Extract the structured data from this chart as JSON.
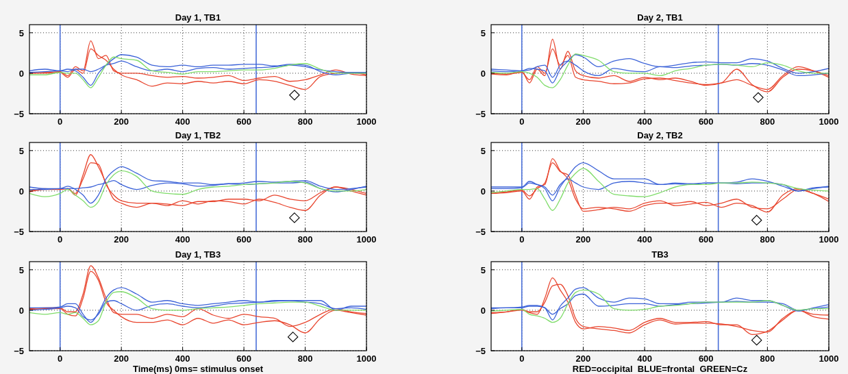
{
  "chart_data": [
    {
      "type": "line",
      "title": "Day 1, TB1",
      "x": [
        -100,
        -50,
        0,
        25,
        50,
        75,
        100,
        125,
        150,
        175,
        200,
        250,
        300,
        350,
        400,
        450,
        500,
        550,
        600,
        650,
        700,
        750,
        800,
        850,
        900,
        950,
        1000
      ],
      "xlim": [
        -100,
        1000
      ],
      "ylim": [
        -5,
        6
      ],
      "xticks": [
        0,
        200,
        400,
        600,
        800,
        1000
      ],
      "yticks": [
        -5,
        0,
        5
      ],
      "grid": true,
      "ref_lines": [
        {
          "axis": "x",
          "value": 0,
          "color": "#4a6fd8"
        },
        {
          "axis": "x",
          "value": 640,
          "color": "#4a6fd8"
        }
      ],
      "series": [
        {
          "color": "#e8452e",
          "values": [
            0,
            0.1,
            0.2,
            -0.3,
            0.8,
            0.3,
            4.0,
            1.8,
            2.2,
            0.3,
            0,
            0,
            -0.3,
            -0.5,
            -0.4,
            -0.6,
            -0.5,
            -0.3,
            -0.9,
            -0.6,
            -0.4,
            -1.0,
            -0.8,
            -0.2,
            0.4,
            -0.1,
            -0.3
          ]
        },
        {
          "color": "#e8452e",
          "values": [
            0,
            0,
            0.1,
            -0.5,
            0.5,
            0,
            3.0,
            2.2,
            1.6,
            0.5,
            -0.2,
            -0.8,
            -1.6,
            -1.2,
            -1.3,
            -1.0,
            -1.2,
            -1.0,
            -1.3,
            -0.8,
            -1.0,
            -1.5,
            -2.0,
            -0.4,
            0,
            0.1,
            -0.2
          ]
        },
        {
          "color": "#3b62d8",
          "values": [
            0.3,
            0.5,
            0.3,
            0.5,
            0.3,
            -0.5,
            -1.5,
            0,
            1.0,
            1.8,
            2.3,
            2.0,
            1.0,
            0.8,
            1.0,
            0.8,
            1.0,
            1.0,
            1.1,
            1.1,
            0.9,
            1.1,
            1.0,
            0.2,
            -0.2,
            0,
            0
          ]
        },
        {
          "color": "#3b62d8",
          "values": [
            0.1,
            0.2,
            0.3,
            0.2,
            0.5,
            0.5,
            0.2,
            0.5,
            1.0,
            1.2,
            1.5,
            0.8,
            0.3,
            0.5,
            0.2,
            0.6,
            0.7,
            0.5,
            0.6,
            0.7,
            0.8,
            1.0,
            0.8,
            0.4,
            0.2,
            0.1,
            0.1
          ]
        },
        {
          "color": "#7fdc6a",
          "values": [
            -0.2,
            -0.2,
            0.1,
            0,
            0,
            -0.8,
            -1.8,
            -0.5,
            1.0,
            2.0,
            1.8,
            1.6,
            0.3,
            0.1,
            -0.1,
            0.2,
            0.2,
            0.3,
            0.4,
            0.4,
            0.6,
            1.0,
            1.2,
            0.5,
            0,
            0,
            0
          ]
        },
        {
          "type": "scatter",
          "marker": "diamond",
          "color": "#000000",
          "x": [
            765
          ],
          "values": [
            -2.7
          ]
        }
      ]
    },
    {
      "type": "line",
      "title": "Day 1, TB2",
      "x": [
        -100,
        -50,
        0,
        25,
        50,
        75,
        100,
        125,
        150,
        175,
        200,
        250,
        300,
        350,
        400,
        450,
        500,
        550,
        600,
        650,
        700,
        750,
        800,
        850,
        900,
        950,
        1000
      ],
      "xlim": [
        -100,
        1000
      ],
      "ylim": [
        -5,
        6
      ],
      "xticks": [
        0,
        200,
        400,
        600,
        800,
        1000
      ],
      "yticks": [
        -5,
        0,
        5
      ],
      "grid": true,
      "ref_lines": [
        {
          "axis": "x",
          "value": 0,
          "color": "#4a6fd8"
        },
        {
          "axis": "x",
          "value": 640,
          "color": "#4a6fd8"
        }
      ],
      "series": [
        {
          "color": "#e8452e",
          "values": [
            0,
            0.3,
            0.2,
            0.3,
            -0.5,
            2.0,
            4.5,
            3.0,
            1.0,
            -1.0,
            -1.5,
            -2.0,
            -1.5,
            -1.6,
            -1.8,
            -1.3,
            -1.3,
            -1.0,
            -1.0,
            -1.2,
            -0.5,
            -1.0,
            -1.2,
            -0.2,
            0.5,
            0,
            -0.5
          ]
        },
        {
          "color": "#e8452e",
          "values": [
            -0.1,
            0.2,
            0.2,
            0.3,
            -0.3,
            1.5,
            3.5,
            3.3,
            0.8,
            -0.5,
            -1.2,
            -1.5,
            -1.5,
            -1.8,
            -1.2,
            -1.6,
            -1.2,
            -1.3,
            -1.6,
            -1.0,
            -1.4,
            -2.0,
            -2.4,
            -0.5,
            0.5,
            0.2,
            -0.3
          ]
        },
        {
          "color": "#3b62d8",
          "values": [
            0.5,
            0.3,
            0.3,
            0.6,
            0.2,
            -0.5,
            -1.5,
            -0.5,
            1.5,
            2.5,
            3.0,
            2.2,
            1.3,
            1.2,
            1.0,
            1.0,
            0.8,
            0.9,
            1.0,
            1.2,
            1.1,
            1.2,
            1.3,
            0.6,
            0.2,
            0.3,
            0.5
          ]
        },
        {
          "color": "#3b62d8",
          "values": [
            0.2,
            0.2,
            0.3,
            0.3,
            0.3,
            0.4,
            0.5,
            0.8,
            1.0,
            1.3,
            0.8,
            0.2,
            0.7,
            1.0,
            0.9,
            0.6,
            0.7,
            0.9,
            0.8,
            0.9,
            1.0,
            1.0,
            1.1,
            0.3,
            -0.1,
            0.2,
            0.6
          ]
        },
        {
          "color": "#7fdc6a",
          "values": [
            -0.3,
            -0.7,
            -0.3,
            0.2,
            -0.5,
            -1.2,
            -2.0,
            -1.3,
            0.8,
            2.0,
            2.5,
            1.8,
            0.0,
            -0.3,
            -0.4,
            0.2,
            0.5,
            0.6,
            0.8,
            0.9,
            1.0,
            1.2,
            1.0,
            0.3,
            0,
            0,
            0.2
          ]
        },
        {
          "type": "scatter",
          "marker": "diamond",
          "color": "#000000",
          "x": [
            765
          ],
          "values": [
            -3.3
          ]
        }
      ]
    },
    {
      "type": "line",
      "title": "Day 1, TB3",
      "xlabel": "Time(ms) 0ms= stimulus onset",
      "x": [
        -100,
        -50,
        0,
        25,
        50,
        75,
        100,
        125,
        150,
        175,
        200,
        250,
        300,
        350,
        400,
        450,
        500,
        550,
        600,
        650,
        700,
        750,
        800,
        850,
        900,
        950,
        1000
      ],
      "xlim": [
        -100,
        1000
      ],
      "ylim": [
        -5,
        6
      ],
      "xticks": [
        0,
        200,
        400,
        600,
        800,
        1000
      ],
      "yticks": [
        -5,
        0,
        5
      ],
      "grid": true,
      "ref_lines": [
        {
          "axis": "x",
          "value": 0,
          "color": "#4a6fd8"
        },
        {
          "axis": "x",
          "value": 640,
          "color": "#4a6fd8"
        }
      ],
      "series": [
        {
          "color": "#e8452e",
          "values": [
            0.2,
            0.3,
            0.3,
            -0.2,
            -0.2,
            2.0,
            5.5,
            4.0,
            1.5,
            -0.3,
            -0.5,
            -0.5,
            -1.0,
            -0.5,
            -0.8,
            0.2,
            -0.6,
            -1.0,
            -0.5,
            -0.8,
            -1.0,
            -2.0,
            -1.5,
            -0.5,
            0.2,
            -0.2,
            -0.4
          ]
        },
        {
          "color": "#e8452e",
          "values": [
            0.1,
            0.2,
            0.2,
            -0.5,
            -0.7,
            1.5,
            4.8,
            3.7,
            1.0,
            0,
            -0.8,
            -1.5,
            -1.5,
            -1.2,
            -1.8,
            -1.0,
            -1.6,
            -1.2,
            -1.8,
            -1.5,
            -1.3,
            -1.8,
            -2.8,
            -1.0,
            0,
            -0.3,
            -0.6
          ]
        },
        {
          "color": "#3b62d8",
          "values": [
            0.3,
            0.3,
            0.4,
            0.8,
            0.8,
            -0.5,
            -1.5,
            -0.3,
            1.5,
            2.5,
            2.8,
            2.0,
            1.0,
            1.2,
            0.8,
            0.6,
            0.8,
            1.0,
            1.2,
            1.0,
            1.2,
            1.2,
            1.2,
            1.2,
            0,
            0.5,
            0.5
          ]
        },
        {
          "color": "#3b62d8",
          "values": [
            0.0,
            0.1,
            0.3,
            0.5,
            0.3,
            -0.8,
            -1.2,
            -0.5,
            1.0,
            1.2,
            0.8,
            0.0,
            0.6,
            0.8,
            0.5,
            0.3,
            0.5,
            0.8,
            0.9,
            1.0,
            1.1,
            1.2,
            1.0,
            0.8,
            0.2,
            0.3,
            0.1
          ]
        },
        {
          "color": "#7fdc6a",
          "values": [
            -0.3,
            -0.5,
            -0.3,
            -0.5,
            -0.3,
            -1.0,
            -1.8,
            -1.3,
            1.0,
            2.2,
            2.3,
            1.5,
            0.2,
            0,
            0,
            0.2,
            0.3,
            0.4,
            0.6,
            0.8,
            0.9,
            1.0,
            1.0,
            0.5,
            0,
            0,
            0
          ]
        },
        {
          "type": "scatter",
          "marker": "diamond",
          "color": "#000000",
          "x": [
            760
          ],
          "values": [
            -3.3
          ]
        }
      ]
    },
    {
      "type": "line",
      "title": "Day 2, TB1",
      "x": [
        -100,
        -50,
        0,
        25,
        50,
        75,
        100,
        125,
        150,
        175,
        200,
        250,
        300,
        350,
        400,
        450,
        500,
        550,
        600,
        650,
        700,
        750,
        800,
        850,
        900,
        950,
        1000
      ],
      "xlim": [
        -100,
        1000
      ],
      "ylim": [
        -5,
        6
      ],
      "xticks": [
        0,
        200,
        400,
        600,
        800,
        1000
      ],
      "yticks": [
        -5,
        0,
        5
      ],
      "grid": true,
      "ref_lines": [
        {
          "axis": "x",
          "value": 0,
          "color": "#4a6fd8"
        },
        {
          "axis": "x",
          "value": 640,
          "color": "#4a6fd8"
        }
      ],
      "series": [
        {
          "color": "#e8452e",
          "values": [
            -0.1,
            -0.2,
            0.2,
            -1.2,
            0.5,
            -0.3,
            4.2,
            0.5,
            2.7,
            0.3,
            -0.3,
            -0.6,
            -0.3,
            -1.0,
            -0.5,
            -0.8,
            -0.6,
            -1.0,
            -1.5,
            -1.2,
            0.5,
            -1.4,
            -2.3,
            -0.5,
            0.5,
            0.3,
            -0.3
          ]
        },
        {
          "color": "#e8452e",
          "values": [
            0,
            -0.1,
            0.1,
            -0.8,
            0.8,
            0,
            3.0,
            1.0,
            2.2,
            -0.5,
            -0.8,
            -1.0,
            -1.3,
            -1.2,
            -0.7,
            -0.6,
            -0.9,
            -1.2,
            -1.4,
            -1.2,
            -0.8,
            -1.5,
            -2.0,
            -0.3,
            0.8,
            0.3,
            -0.5
          ]
        },
        {
          "color": "#3b62d8",
          "values": [
            0.5,
            0.4,
            0.3,
            0.6,
            0.5,
            0.3,
            -1.2,
            0.5,
            1.5,
            2.3,
            2.0,
            0.8,
            1.5,
            1.8,
            1.2,
            0.8,
            1.0,
            1.3,
            1.4,
            1.3,
            1.3,
            1.8,
            1.5,
            0.6,
            0,
            0.2,
            0.6
          ]
        },
        {
          "color": "#3b62d8",
          "values": [
            0.3,
            0.2,
            0.3,
            0.4,
            0.8,
            1.0,
            -0.5,
            1.0,
            1.5,
            1.0,
            0.3,
            -0.3,
            0.6,
            0.3,
            0.2,
            0.8,
            0.7,
            0.9,
            1.0,
            1.1,
            1.0,
            1.2,
            1.0,
            0.4,
            -0.3,
            -0.2,
            0
          ]
        },
        {
          "color": "#7fdc6a",
          "values": [
            0.1,
            0,
            0.2,
            0,
            -0.5,
            -1.5,
            -1.8,
            -0.8,
            1.0,
            2.4,
            2.2,
            1.6,
            0.2,
            0,
            0,
            -0.3,
            0.3,
            0.6,
            1.0,
            1.1,
            1.0,
            0.8,
            1.3,
            1.0,
            0.3,
            0,
            0
          ]
        },
        {
          "type": "scatter",
          "marker": "diamond",
          "color": "#000000",
          "x": [
            770
          ],
          "values": [
            -3.0
          ]
        }
      ]
    },
    {
      "type": "line",
      "title": "Day 2, TB2",
      "x": [
        -100,
        -50,
        0,
        25,
        50,
        75,
        100,
        125,
        150,
        175,
        200,
        250,
        300,
        350,
        400,
        450,
        500,
        550,
        600,
        650,
        700,
        750,
        800,
        850,
        900,
        950,
        1000
      ],
      "xlim": [
        -100,
        1000
      ],
      "ylim": [
        -5,
        6
      ],
      "xticks": [
        0,
        200,
        400,
        600,
        800,
        1000
      ],
      "yticks": [
        -5,
        0,
        5
      ],
      "grid": true,
      "ref_lines": [
        {
          "axis": "x",
          "value": 0,
          "color": "#4a6fd8"
        },
        {
          "axis": "x",
          "value": 640,
          "color": "#4a6fd8"
        }
      ],
      "series": [
        {
          "color": "#e8452e",
          "values": [
            -0.3,
            -0.2,
            0,
            -1.0,
            0.5,
            0.8,
            4.0,
            2.5,
            1.5,
            -1.0,
            -2.2,
            -2.0,
            -2.2,
            -2.5,
            -1.8,
            -1.5,
            -1.5,
            -1.3,
            -1.8,
            -1.5,
            -1.0,
            -2.0,
            -2.2,
            -1.0,
            0.2,
            -0.3,
            -1.0
          ]
        },
        {
          "color": "#e8452e",
          "values": [
            -0.2,
            -0.1,
            0.1,
            -0.6,
            0.3,
            1.0,
            3.5,
            2.4,
            2.0,
            -0.5,
            -2.5,
            -2.3,
            -2.0,
            -2.2,
            -1.5,
            -1.2,
            -1.8,
            -1.6,
            -1.4,
            -2.0,
            -1.5,
            -1.8,
            -2.6,
            -0.5,
            0.3,
            -0.3,
            -1.3
          ]
        },
        {
          "color": "#3b62d8",
          "values": [
            0.5,
            0.5,
            0.5,
            1.2,
            0.8,
            0.3,
            -1.2,
            0.5,
            1.8,
            3.0,
            3.5,
            2.5,
            1.5,
            1.5,
            1.5,
            0.8,
            0.9,
            0.8,
            1.0,
            1.0,
            1.1,
            1.5,
            1.2,
            0.6,
            0,
            0.3,
            0.6
          ]
        },
        {
          "color": "#3b62d8",
          "values": [
            0.3,
            0.3,
            0.4,
            1.0,
            0.8,
            0.5,
            -0.5,
            0.8,
            1.5,
            1.0,
            0.5,
            0.2,
            1.0,
            1.2,
            1.0,
            0.8,
            1.0,
            0.9,
            1.0,
            1.0,
            0.9,
            1.0,
            1.0,
            0.8,
            0,
            0.4,
            0.5
          ]
        },
        {
          "color": "#7fdc6a",
          "values": [
            -0.2,
            0,
            0.2,
            0.2,
            0.3,
            -1.0,
            -2.4,
            -1.0,
            1.0,
            2.2,
            2.8,
            1.2,
            -0.4,
            -0.6,
            -0.7,
            -0.2,
            0.5,
            0.8,
            0.8,
            1.0,
            1.0,
            1.1,
            1.0,
            0.8,
            0.3,
            0.1,
            0
          ]
        },
        {
          "type": "scatter",
          "marker": "diamond",
          "color": "#000000",
          "x": [
            765
          ],
          "values": [
            -3.6
          ]
        }
      ]
    },
    {
      "type": "line",
      "title": "TB3",
      "xlabel": "RED=occipital  BLUE=frontal  GREEN=Cz",
      "x": [
        -100,
        -50,
        0,
        25,
        50,
        75,
        100,
        125,
        150,
        175,
        200,
        250,
        300,
        350,
        400,
        450,
        500,
        550,
        600,
        650,
        700,
        750,
        800,
        850,
        900,
        950,
        1000
      ],
      "xlim": [
        -100,
        1000
      ],
      "ylim": [
        -5,
        6
      ],
      "xticks": [
        0,
        200,
        400,
        600,
        800,
        1000
      ],
      "yticks": [
        -5,
        0,
        5
      ],
      "grid": true,
      "ref_lines": [
        {
          "axis": "x",
          "value": 0,
          "color": "#4a6fd8"
        },
        {
          "axis": "x",
          "value": 640,
          "color": "#4a6fd8"
        }
      ],
      "series": [
        {
          "color": "#e8452e",
          "values": [
            -0.3,
            -0.2,
            0,
            -0.3,
            -0.5,
            1.5,
            4.0,
            2.5,
            1.0,
            -1.5,
            -2.3,
            -2.0,
            -2.2,
            -2.5,
            -1.5,
            -1.0,
            -1.5,
            -1.5,
            -1.4,
            -1.8,
            -1.8,
            -3.0,
            -2.6,
            -1.2,
            0,
            -0.5,
            -0.6
          ]
        },
        {
          "color": "#e8452e",
          "values": [
            -0.4,
            -0.2,
            0.1,
            -0.2,
            -0.2,
            1.0,
            3.0,
            3.2,
            1.8,
            -1.0,
            -2.0,
            -2.3,
            -2.5,
            -2.8,
            -1.8,
            -1.2,
            -1.7,
            -1.6,
            -1.6,
            -1.7,
            -2.0,
            -2.5,
            -2.7,
            -1.0,
            0,
            -0.8,
            -1.1
          ]
        },
        {
          "color": "#3b62d8",
          "values": [
            0.3,
            0.3,
            0.4,
            0.6,
            0.6,
            0.3,
            -1.2,
            0.5,
            1.5,
            2.6,
            2.8,
            1.5,
            1.0,
            1.5,
            1.4,
            0.8,
            0.8,
            1.0,
            1.0,
            1.0,
            1.5,
            1.2,
            1.2,
            0.6,
            -0.1,
            0.3,
            0.7
          ]
        },
        {
          "color": "#3b62d8",
          "values": [
            0.2,
            0.3,
            0.3,
            0.5,
            0.5,
            0.3,
            -0.5,
            0.2,
            0.8,
            1.8,
            2.0,
            0.5,
            0.6,
            0.8,
            0.8,
            0.5,
            0.7,
            0.8,
            0.9,
            1.0,
            1.1,
            1.0,
            1.0,
            0.8,
            0,
            0.2,
            0.4
          ]
        },
        {
          "color": "#7fdc6a",
          "values": [
            -0.1,
            0,
            0.1,
            -0.5,
            -0.7,
            -1.0,
            -1.5,
            -1.0,
            0.8,
            2.2,
            2.5,
            2.0,
            0.2,
            0,
            0.1,
            0.5,
            0.6,
            0.8,
            1.0,
            1.0,
            1.0,
            1.0,
            1.2,
            0.6,
            0,
            0.2,
            0.2
          ]
        },
        {
          "type": "scatter",
          "marker": "diamond",
          "color": "#000000",
          "x": [
            765
          ],
          "values": [
            -3.7
          ]
        }
      ]
    }
  ]
}
